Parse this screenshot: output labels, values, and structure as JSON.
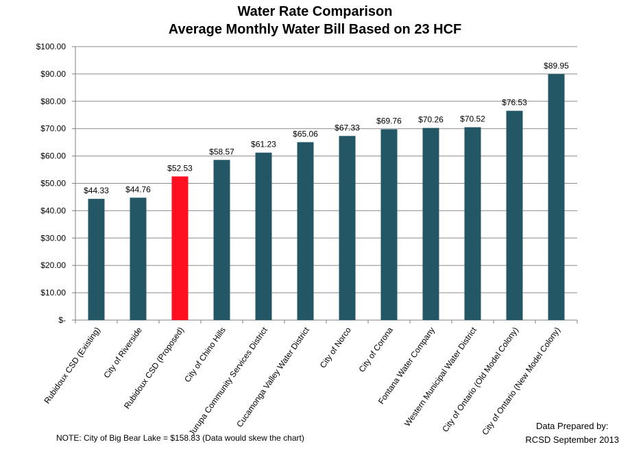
{
  "chart_data": {
    "type": "bar",
    "title": "Water Rate Comparison",
    "subtitle": "Average Monthly Water Bill Based on 23 HCF",
    "xlabel": "",
    "ylabel": "",
    "ylim": [
      0,
      100
    ],
    "yticks": [
      0,
      10,
      20,
      30,
      40,
      50,
      60,
      70,
      80,
      90,
      100
    ],
    "ytick_labels": [
      "$-",
      "$10.00",
      "$20.00",
      "$30.00",
      "$40.00",
      "$50.00",
      "$60.00",
      "$70.00",
      "$80.00",
      "$90.00",
      "$100.00"
    ],
    "grid": true,
    "legend": "none",
    "categories": [
      "Rubidoux CSD (Existing)",
      "City of Riverside",
      "Rubidoux CSD (Proposed)",
      "City of Chino Hills",
      "Jurupa Community Services District",
      "Cucamonga Valley Water District",
      "City of Norco",
      "City of Corona",
      "Fontana Water Company",
      "Western Municipal Water District",
      "City of Ontario (Old Model Colony)",
      "City of Ontario (New Model Colony)"
    ],
    "values": [
      44.33,
      44.76,
      52.53,
      58.57,
      61.23,
      65.06,
      67.33,
      69.76,
      70.26,
      70.52,
      76.53,
      89.95
    ],
    "data_labels": [
      "$44.33",
      "$44.76",
      "$52.53",
      "$58.57",
      "$61.23",
      "$65.06",
      "$67.33",
      "$69.76",
      "$70.26",
      "$70.52",
      "$76.53",
      "$89.95"
    ],
    "colors": {
      "default": "#245766",
      "highlight": "#ff1020",
      "grid": "#8c8c8c",
      "axis": "#7f7f7f"
    },
    "highlight_index": 2
  },
  "footer": {
    "note": "NOTE:   City of Big Bear Lake = $158.83 (Data would skew the chart)",
    "credit_line1": "Data Prepared by:",
    "credit_line2": "RCSD September 2013"
  }
}
